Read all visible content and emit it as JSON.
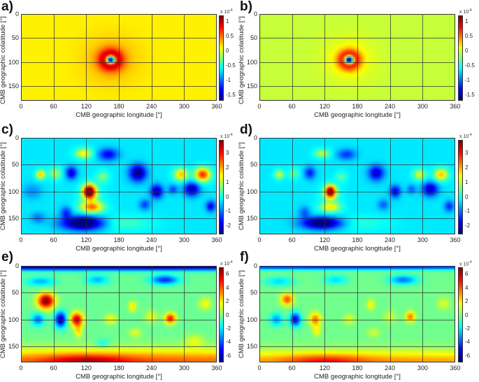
{
  "chart_data": [
    {
      "type": "heatmap",
      "panel_label": "a)",
      "xlabel": "CMB geographic longitude [°]",
      "ylabel": "CMB geographic colatitude [°]",
      "xticks": [
        "0",
        "60",
        "120",
        "180",
        "240",
        "300",
        "360"
      ],
      "yticks": [
        "0",
        "50",
        "100",
        "150"
      ],
      "xlim": [
        0,
        360
      ],
      "ylim": [
        0,
        180
      ],
      "colorbar": {
        "exponent_label": "x 10",
        "exponent": "-4",
        "range": [
          -1.7,
          1.2
        ],
        "ticks": [
          "1",
          "0.5",
          "0",
          "-0.5",
          "-1",
          "-1.5"
        ],
        "tick_values": [
          1,
          0.5,
          0,
          -0.5,
          -1,
          -1.5
        ]
      },
      "background": 0.15,
      "features": [
        {
          "lon": 165,
          "colat": 95,
          "sx": 14,
          "sy": 14,
          "v": 1.4
        },
        {
          "lon": 165,
          "colat": 95,
          "sx": 6,
          "sy": 6,
          "v": -3.4
        },
        {
          "lon": 165,
          "colat": 95,
          "sx": 35,
          "sy": 35,
          "v": 0.2
        }
      ]
    },
    {
      "type": "heatmap",
      "panel_label": "b)",
      "xlabel": "CMB geographic longitude [°]",
      "ylabel": "CMB geographic colatitude [°]",
      "xticks": [
        "0",
        "60",
        "120",
        "180",
        "240",
        "300",
        "360"
      ],
      "yticks": [
        "0",
        "50",
        "100",
        "150"
      ],
      "xlim": [
        0,
        360
      ],
      "ylim": [
        0,
        180
      ],
      "colorbar": {
        "exponent_label": "x 10",
        "exponent": "-4",
        "range": [
          -1.7,
          1.2
        ],
        "ticks": [
          "1",
          "0.5",
          "0",
          "-0.5",
          "-1",
          "-1.5"
        ],
        "tick_values": [
          1,
          0.5,
          0,
          -0.5,
          -1,
          -1.5
        ]
      },
      "background": -0.05,
      "features": [
        {
          "lon": 165,
          "colat": 95,
          "sx": 13,
          "sy": 13,
          "v": 1.6
        },
        {
          "lon": 165,
          "colat": 95,
          "sx": 6,
          "sy": 6,
          "v": -3.6
        },
        {
          "lon": 165,
          "colat": 95,
          "sx": 35,
          "sy": 35,
          "v": 0.15
        }
      ]
    },
    {
      "type": "heatmap",
      "panel_label": "c)",
      "xlabel": "CMB geographic longitude [°]",
      "ylabel": "CMB geographic colatitude [°]",
      "xticks": [
        "0",
        "60",
        "120",
        "180",
        "240",
        "300",
        "360"
      ],
      "yticks": [
        "0",
        "50",
        "100",
        "150"
      ],
      "xlim": [
        0,
        360
      ],
      "ylim": [
        0,
        180
      ],
      "colorbar": {
        "exponent_label": "x 10",
        "exponent": "-4",
        "range": [
          -2.6,
          3.9
        ],
        "ticks": [
          "3",
          "2",
          "1",
          "0",
          "-1",
          "-2"
        ],
        "tick_values": [
          3,
          2,
          1,
          0,
          -1,
          -2
        ]
      },
      "background": -0.3,
      "features": [
        {
          "lon": 115,
          "colat": 28,
          "sx": 11,
          "sy": 7,
          "v": 1.8
        },
        {
          "lon": 160,
          "colat": 30,
          "sx": 13,
          "sy": 8,
          "v": -1.6
        },
        {
          "lon": 35,
          "colat": 68,
          "sx": 6,
          "sy": 6,
          "v": 2.2
        },
        {
          "lon": 62,
          "colat": 66,
          "sx": 8,
          "sy": 8,
          "v": 1.2
        },
        {
          "lon": 92,
          "colat": 65,
          "sx": 7,
          "sy": 8,
          "v": -1.9
        },
        {
          "lon": 150,
          "colat": 72,
          "sx": 8,
          "sy": 8,
          "v": 0.9
        },
        {
          "lon": 125,
          "colat": 100,
          "sx": 8,
          "sy": 9,
          "v": 4.6
        },
        {
          "lon": 128,
          "colat": 112,
          "sx": 14,
          "sy": 16,
          "v": 0.9
        },
        {
          "lon": 215,
          "colat": 65,
          "sx": 11,
          "sy": 11,
          "v": -2.4
        },
        {
          "lon": 250,
          "colat": 100,
          "sx": 8,
          "sy": 9,
          "v": -2.1
        },
        {
          "lon": 295,
          "colat": 68,
          "sx": 9,
          "sy": 8,
          "v": 2.2
        },
        {
          "lon": 335,
          "colat": 68,
          "sx": 10,
          "sy": 9,
          "v": 3.2
        },
        {
          "lon": 315,
          "colat": 96,
          "sx": 10,
          "sy": 9,
          "v": -2.1
        },
        {
          "lon": 280,
          "colat": 96,
          "sx": 6,
          "sy": 6,
          "v": -1.1
        },
        {
          "lon": 130,
          "colat": 130,
          "sx": 15,
          "sy": 7,
          "v": 2.3
        },
        {
          "lon": 115,
          "colat": 160,
          "sx": 28,
          "sy": 9,
          "v": -3.0
        },
        {
          "lon": 82,
          "colat": 140,
          "sx": 7,
          "sy": 8,
          "v": -1.2
        },
        {
          "lon": 228,
          "colat": 125,
          "sx": 7,
          "sy": 7,
          "v": -1.1
        },
        {
          "lon": 350,
          "colat": 128,
          "sx": 6,
          "sy": 7,
          "v": -1.7
        },
        {
          "lon": 30,
          "colat": 150,
          "sx": 9,
          "sy": 7,
          "v": -0.8
        },
        {
          "lon": 180,
          "colat": 160,
          "sx": 40,
          "sy": 10,
          "v": 0.6
        },
        {
          "lon": 20,
          "colat": 100,
          "sx": 12,
          "sy": 10,
          "v": -0.6
        }
      ]
    },
    {
      "type": "heatmap",
      "panel_label": "d)",
      "xlabel": "CMB geographic longitude [°]",
      "ylabel": "CMB geographic colatitude [°]",
      "xticks": [
        "0",
        "60",
        "120",
        "180",
        "240",
        "300",
        "360"
      ],
      "yticks": [
        "0",
        "50",
        "100",
        "150"
      ],
      "xlim": [
        0,
        360
      ],
      "ylim": [
        0,
        180
      ],
      "colorbar": {
        "exponent_label": "x 10",
        "exponent": "-4",
        "range": [
          -2.6,
          3.9
        ],
        "ticks": [
          "3",
          "2",
          "1",
          "0",
          "-1",
          "-2"
        ],
        "tick_values": [
          3,
          2,
          1,
          0,
          -1,
          -2
        ]
      },
      "background": -0.3,
      "features": [
        {
          "lon": 115,
          "colat": 28,
          "sx": 10,
          "sy": 6,
          "v": 1.3
        },
        {
          "lon": 160,
          "colat": 30,
          "sx": 12,
          "sy": 7,
          "v": -1.2
        },
        {
          "lon": 35,
          "colat": 68,
          "sx": 6,
          "sy": 6,
          "v": 1.5
        },
        {
          "lon": 62,
          "colat": 66,
          "sx": 7,
          "sy": 7,
          "v": 0.8
        },
        {
          "lon": 92,
          "colat": 65,
          "sx": 7,
          "sy": 8,
          "v": -1.4
        },
        {
          "lon": 150,
          "colat": 72,
          "sx": 7,
          "sy": 7,
          "v": 0.7
        },
        {
          "lon": 130,
          "colat": 100,
          "sx": 7,
          "sy": 8,
          "v": 4.2
        },
        {
          "lon": 130,
          "colat": 112,
          "sx": 13,
          "sy": 15,
          "v": 0.7
        },
        {
          "lon": 215,
          "colat": 65,
          "sx": 10,
          "sy": 10,
          "v": -1.9
        },
        {
          "lon": 250,
          "colat": 100,
          "sx": 7,
          "sy": 8,
          "v": -1.7
        },
        {
          "lon": 295,
          "colat": 68,
          "sx": 8,
          "sy": 7,
          "v": 1.6
        },
        {
          "lon": 335,
          "colat": 68,
          "sx": 9,
          "sy": 8,
          "v": 2.2
        },
        {
          "lon": 315,
          "colat": 96,
          "sx": 10,
          "sy": 9,
          "v": -2.0
        },
        {
          "lon": 280,
          "colat": 96,
          "sx": 6,
          "sy": 6,
          "v": -0.9
        },
        {
          "lon": 130,
          "colat": 130,
          "sx": 13,
          "sy": 6,
          "v": 1.6
        },
        {
          "lon": 115,
          "colat": 160,
          "sx": 26,
          "sy": 8,
          "v": -2.8
        },
        {
          "lon": 82,
          "colat": 140,
          "sx": 7,
          "sy": 8,
          "v": -0.9
        },
        {
          "lon": 228,
          "colat": 125,
          "sx": 7,
          "sy": 7,
          "v": -0.9
        },
        {
          "lon": 350,
          "colat": 128,
          "sx": 6,
          "sy": 7,
          "v": -1.3
        },
        {
          "lon": 180,
          "colat": 160,
          "sx": 40,
          "sy": 10,
          "v": 0.4
        }
      ]
    },
    {
      "type": "heatmap",
      "panel_label": "e)",
      "xlabel": "CMB geographic longitude [°]",
      "ylabel": "CMB geographic colatitude [°]",
      "xticks": [
        "0",
        "60",
        "120",
        "180",
        "240",
        "300",
        "360"
      ],
      "yticks": [
        "0",
        "50",
        "100",
        "150"
      ],
      "xlim": [
        0,
        360
      ],
      "ylim": [
        0,
        180
      ],
      "colorbar": {
        "exponent_label": "x 10",
        "exponent": "-4",
        "range": [
          -7,
          7
        ],
        "ticks": [
          "6",
          "4",
          "2",
          "0",
          "-2",
          "-4",
          "-6"
        ],
        "tick_values": [
          6,
          4,
          2,
          0,
          -2,
          -4,
          -6
        ]
      },
      "background": -0.3,
      "features": [
        {
          "lon": 180,
          "colat": 0,
          "sx": 400,
          "sy": 5,
          "v": -7
        },
        {
          "lon": 180,
          "colat": 182,
          "sx": 400,
          "sy": 18,
          "v": 4.5
        },
        {
          "lon": 120,
          "colat": 178,
          "sx": 50,
          "sy": 8,
          "v": 2.5
        },
        {
          "lon": 45,
          "colat": 65,
          "sx": 11,
          "sy": 10,
          "v": 7.5
        },
        {
          "lon": 30,
          "colat": 100,
          "sx": 8,
          "sy": 8,
          "v": -3.5
        },
        {
          "lon": 72,
          "colat": 100,
          "sx": 7,
          "sy": 10,
          "v": -6.5
        },
        {
          "lon": 102,
          "colat": 100,
          "sx": 8,
          "sy": 9,
          "v": 6.5
        },
        {
          "lon": 105,
          "colat": 122,
          "sx": 5,
          "sy": 8,
          "v": 2.5
        },
        {
          "lon": 265,
          "colat": 25,
          "sx": 18,
          "sy": 6,
          "v": -4.5
        },
        {
          "lon": 275,
          "colat": 98,
          "sx": 7,
          "sy": 7,
          "v": 5.5
        },
        {
          "lon": 205,
          "colat": 75,
          "sx": 5,
          "sy": 7,
          "v": 2.5
        },
        {
          "lon": 165,
          "colat": 100,
          "sx": 8,
          "sy": 7,
          "v": 2.0
        },
        {
          "lon": 140,
          "colat": 25,
          "sx": 15,
          "sy": 6,
          "v": -2.5
        },
        {
          "lon": 35,
          "colat": 28,
          "sx": 18,
          "sy": 6,
          "v": -2.5
        },
        {
          "lon": 340,
          "colat": 70,
          "sx": 8,
          "sy": 8,
          "v": 2.0
        },
        {
          "lon": 240,
          "colat": 95,
          "sx": 8,
          "sy": 8,
          "v": 1.8
        },
        {
          "lon": 320,
          "colat": 140,
          "sx": 12,
          "sy": 8,
          "v": 1.5
        },
        {
          "lon": 150,
          "colat": 145,
          "sx": 10,
          "sy": 6,
          "v": -1.5
        },
        {
          "lon": 210,
          "colat": 125,
          "sx": 8,
          "sy": 6,
          "v": 1.6
        }
      ]
    },
    {
      "type": "heatmap",
      "panel_label": "f)",
      "xlabel": "CMB geographic longitude [°]",
      "ylabel": "CMB geographic colatitude [°]",
      "xticks": [
        "0",
        "60",
        "120",
        "180",
        "240",
        "300",
        "360"
      ],
      "yticks": [
        "0",
        "50",
        "100",
        "150"
      ],
      "xlim": [
        0,
        360
      ],
      "ylim": [
        0,
        180
      ],
      "colorbar": {
        "exponent_label": "x 10",
        "exponent": "-4",
        "range": [
          -7,
          7
        ],
        "ticks": [
          "6",
          "4",
          "2",
          "0",
          "-2",
          "-4",
          "-6"
        ],
        "tick_values": [
          6,
          4,
          2,
          0,
          -2,
          -4,
          -6
        ]
      },
      "background": -0.2,
      "features": [
        {
          "lon": 180,
          "colat": 0,
          "sx": 400,
          "sy": 4,
          "v": -5
        },
        {
          "lon": 180,
          "colat": 182,
          "sx": 400,
          "sy": 16,
          "v": 3.5
        },
        {
          "lon": 120,
          "colat": 178,
          "sx": 50,
          "sy": 8,
          "v": 2.0
        },
        {
          "lon": 50,
          "colat": 62,
          "sx": 8,
          "sy": 8,
          "v": 4.5
        },
        {
          "lon": 30,
          "colat": 100,
          "sx": 8,
          "sy": 8,
          "v": -3.0
        },
        {
          "lon": 65,
          "colat": 100,
          "sx": 7,
          "sy": 9,
          "v": -5.5
        },
        {
          "lon": 102,
          "colat": 100,
          "sx": 7,
          "sy": 9,
          "v": 4.0
        },
        {
          "lon": 105,
          "colat": 122,
          "sx": 5,
          "sy": 7,
          "v": 2.0
        },
        {
          "lon": 265,
          "colat": 25,
          "sx": 18,
          "sy": 6,
          "v": -3.5
        },
        {
          "lon": 278,
          "colat": 95,
          "sx": 6,
          "sy": 7,
          "v": 4.0
        },
        {
          "lon": 205,
          "colat": 72,
          "sx": 5,
          "sy": 7,
          "v": 2.2
        },
        {
          "lon": 165,
          "colat": 100,
          "sx": 7,
          "sy": 7,
          "v": 1.6
        },
        {
          "lon": 140,
          "colat": 25,
          "sx": 15,
          "sy": 6,
          "v": -2.0
        },
        {
          "lon": 35,
          "colat": 28,
          "sx": 18,
          "sy": 6,
          "v": -2.0
        },
        {
          "lon": 340,
          "colat": 70,
          "sx": 8,
          "sy": 8,
          "v": 1.5
        },
        {
          "lon": 240,
          "colat": 95,
          "sx": 8,
          "sy": 8,
          "v": 1.3
        },
        {
          "lon": 210,
          "colat": 125,
          "sx": 8,
          "sy": 6,
          "v": 1.3
        }
      ]
    }
  ]
}
